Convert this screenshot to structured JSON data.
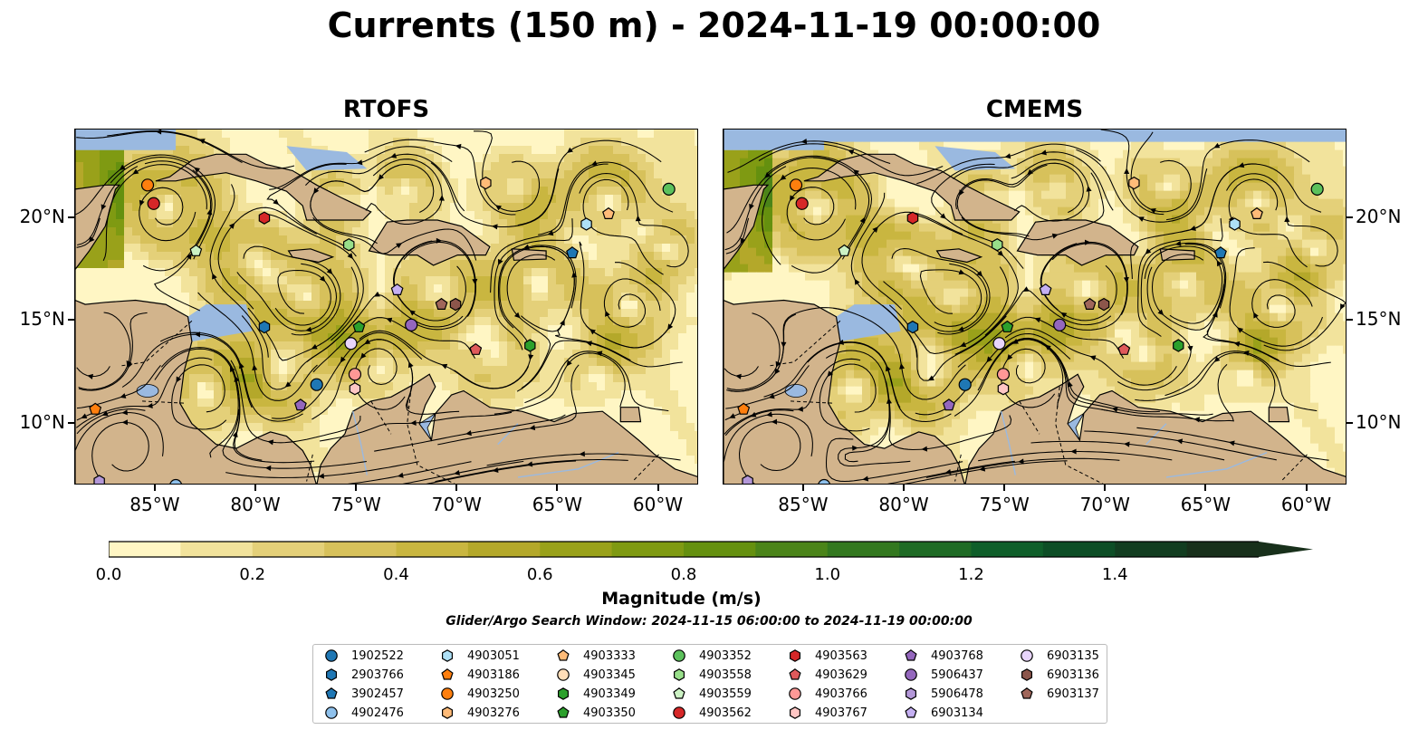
{
  "title": "Currents (150 m) - 2024-11-19 00:00:00",
  "panels": [
    {
      "title": "RTOFS",
      "variant": 0
    },
    {
      "title": "CMEMS",
      "variant": 1
    }
  ],
  "map": {
    "lon_range": [
      -89,
      -58
    ],
    "lat_range": [
      7,
      24.3
    ],
    "lon_ticks": [
      "85°W",
      "80°W",
      "75°W",
      "70°W",
      "65°W",
      "60°W"
    ],
    "lat_ticks": [
      "20°N",
      "15°N",
      "10°N"
    ],
    "colors": {
      "land": "#d2b48c",
      "ocean": "#9ab9e0",
      "coast": "#000000"
    }
  },
  "colorbar": {
    "label": "Magnitude (m/s)",
    "ticks": [
      "0.0",
      "0.2",
      "0.4",
      "0.6",
      "0.8",
      "1.0",
      "1.2",
      "1.4"
    ],
    "min": 0.0,
    "max": 1.6,
    "step": 0.1,
    "extend": "max",
    "colors": [
      "#fff6c4",
      "#f2e39c",
      "#e4d079",
      "#d7c15b",
      "#c9b640",
      "#b4a82a",
      "#99a11a",
      "#7f9a12",
      "#65900f",
      "#4b8419",
      "#33781f",
      "#1f6b25",
      "#0f5f2a",
      "#0d4e26",
      "#123d20",
      "#18301b"
    ]
  },
  "search_window": "Glider/Argo Search Window: 2024-11-15 06:00:00 to 2024-11-19 00:00:00",
  "legend": [
    {
      "id": "1902522",
      "color": "#1f77b4",
      "shape": "circle"
    },
    {
      "id": "2903766",
      "color": "#1f77b4",
      "shape": "hexagon"
    },
    {
      "id": "3902457",
      "color": "#1f77b4",
      "shape": "pentagon"
    },
    {
      "id": "4902476",
      "color": "#8fc1ec",
      "shape": "circle"
    },
    {
      "id": "4903051",
      "color": "#aee0f6",
      "shape": "hexagon"
    },
    {
      "id": "4903186",
      "color": "#ff7f0e",
      "shape": "pentagon"
    },
    {
      "id": "4903250",
      "color": "#ff7f0e",
      "shape": "circle"
    },
    {
      "id": "4903276",
      "color": "#ffbb78",
      "shape": "hexagon"
    },
    {
      "id": "4903333",
      "color": "#ffbb78",
      "shape": "pentagon"
    },
    {
      "id": "4903345",
      "color": "#ffddb8",
      "shape": "circle"
    },
    {
      "id": "4903349",
      "color": "#2ca02c",
      "shape": "hexagon"
    },
    {
      "id": "4903350",
      "color": "#2ca02c",
      "shape": "pentagon"
    },
    {
      "id": "4903352",
      "color": "#5cc15c",
      "shape": "circle"
    },
    {
      "id": "4903558",
      "color": "#98df8a",
      "shape": "hexagon"
    },
    {
      "id": "4903559",
      "color": "#ccf2c4",
      "shape": "pentagon"
    },
    {
      "id": "4903562",
      "color": "#d62728",
      "shape": "circle"
    },
    {
      "id": "4903563",
      "color": "#d62728",
      "shape": "hexagon"
    },
    {
      "id": "4903629",
      "color": "#e05a5b",
      "shape": "pentagon"
    },
    {
      "id": "4903766",
      "color": "#ff9896",
      "shape": "circle"
    },
    {
      "id": "4903767",
      "color": "#ffc6c4",
      "shape": "hexagon"
    },
    {
      "id": "4903768",
      "color": "#9467bd",
      "shape": "pentagon"
    },
    {
      "id": "5906437",
      "color": "#9467bd",
      "shape": "circle"
    },
    {
      "id": "5906478",
      "color": "#b397d8",
      "shape": "hexagon"
    },
    {
      "id": "6903134",
      "color": "#c5b0f2",
      "shape": "pentagon"
    },
    {
      "id": "6903135",
      "color": "#e8d5fb",
      "shape": "circle"
    },
    {
      "id": "6903136",
      "color": "#8c564b",
      "shape": "hexagon"
    },
    {
      "id": "6903137",
      "color": "#a0665a",
      "shape": "pentagon"
    }
  ],
  "observations": [
    {
      "id": "4903250",
      "lon": -85.4,
      "lat": 21.6,
      "shape": "circle",
      "color": "#ff7f0e"
    },
    {
      "id": "4903562",
      "lon": -85.1,
      "lat": 20.7,
      "shape": "circle",
      "color": "#d62728"
    },
    {
      "id": "4903563",
      "lon": -79.6,
      "lat": 20.0,
      "shape": "hexagon",
      "color": "#d62728"
    },
    {
      "id": "4903559",
      "lon": -83.0,
      "lat": 18.4,
      "shape": "pentagon",
      "color": "#ccf2c4"
    },
    {
      "id": "4903558",
      "lon": -75.4,
      "lat": 18.7,
      "shape": "hexagon",
      "color": "#98df8a"
    },
    {
      "id": "4903276",
      "lon": -68.6,
      "lat": 21.7,
      "shape": "hexagon",
      "color": "#ffbb78"
    },
    {
      "id": "4903352",
      "lon": -59.5,
      "lat": 21.4,
      "shape": "circle",
      "color": "#5cc15c"
    },
    {
      "id": "4903051",
      "lon": -63.6,
      "lat": 19.7,
      "shape": "hexagon",
      "color": "#aee0f6"
    },
    {
      "id": "4903333",
      "lon": -62.5,
      "lat": 20.2,
      "shape": "pentagon",
      "color": "#ffbb78"
    },
    {
      "id": "3902457",
      "lon": -64.3,
      "lat": 18.3,
      "shape": "pentagon",
      "color": "#1f77b4"
    },
    {
      "id": "6903134",
      "lon": -73.0,
      "lat": 16.5,
      "shape": "pentagon",
      "color": "#c5b0f2"
    },
    {
      "id": "2903766",
      "lon": -79.6,
      "lat": 14.7,
      "shape": "hexagon",
      "color": "#1f77b4"
    },
    {
      "id": "4903350",
      "lon": -74.9,
      "lat": 14.7,
      "shape": "pentagon",
      "color": "#2ca02c"
    },
    {
      "id": "5906437",
      "lon": -72.3,
      "lat": 14.8,
      "shape": "circle",
      "color": "#9467bd"
    },
    {
      "id": "6903135",
      "lon": -75.3,
      "lat": 13.9,
      "shape": "circle",
      "color": "#e8d5fb"
    },
    {
      "id": "6903136",
      "lon": -70.1,
      "lat": 15.8,
      "shape": "hexagon",
      "color": "#8c564b"
    },
    {
      "id": "6903137",
      "lon": -70.8,
      "lat": 15.8,
      "shape": "pentagon",
      "color": "#a0665a"
    },
    {
      "id": "4903629",
      "lon": -69.1,
      "lat": 13.6,
      "shape": "pentagon",
      "color": "#e05a5b"
    },
    {
      "id": "4903349",
      "lon": -66.4,
      "lat": 13.8,
      "shape": "hexagon",
      "color": "#2ca02c"
    },
    {
      "id": "4903766",
      "lon": -75.1,
      "lat": 12.4,
      "shape": "circle",
      "color": "#ff9896"
    },
    {
      "id": "4903767",
      "lon": -75.1,
      "lat": 11.7,
      "shape": "hexagon",
      "color": "#ffc6c4"
    },
    {
      "id": "1902522",
      "lon": -77.0,
      "lat": 11.9,
      "shape": "circle",
      "color": "#1f77b4"
    },
    {
      "id": "4903768",
      "lon": -77.8,
      "lat": 10.9,
      "shape": "pentagon",
      "color": "#9467bd"
    },
    {
      "id": "4903186",
      "lon": -88.0,
      "lat": 10.7,
      "shape": "pentagon",
      "color": "#ff7f0e"
    },
    {
      "id": "5906478",
      "lon": -87.8,
      "lat": 7.2,
      "shape": "hexagon",
      "color": "#b397d8"
    },
    {
      "id": "4902476",
      "lon": -84.0,
      "lat": 7.0,
      "shape": "circle",
      "color": "#8fc1ec"
    }
  ]
}
